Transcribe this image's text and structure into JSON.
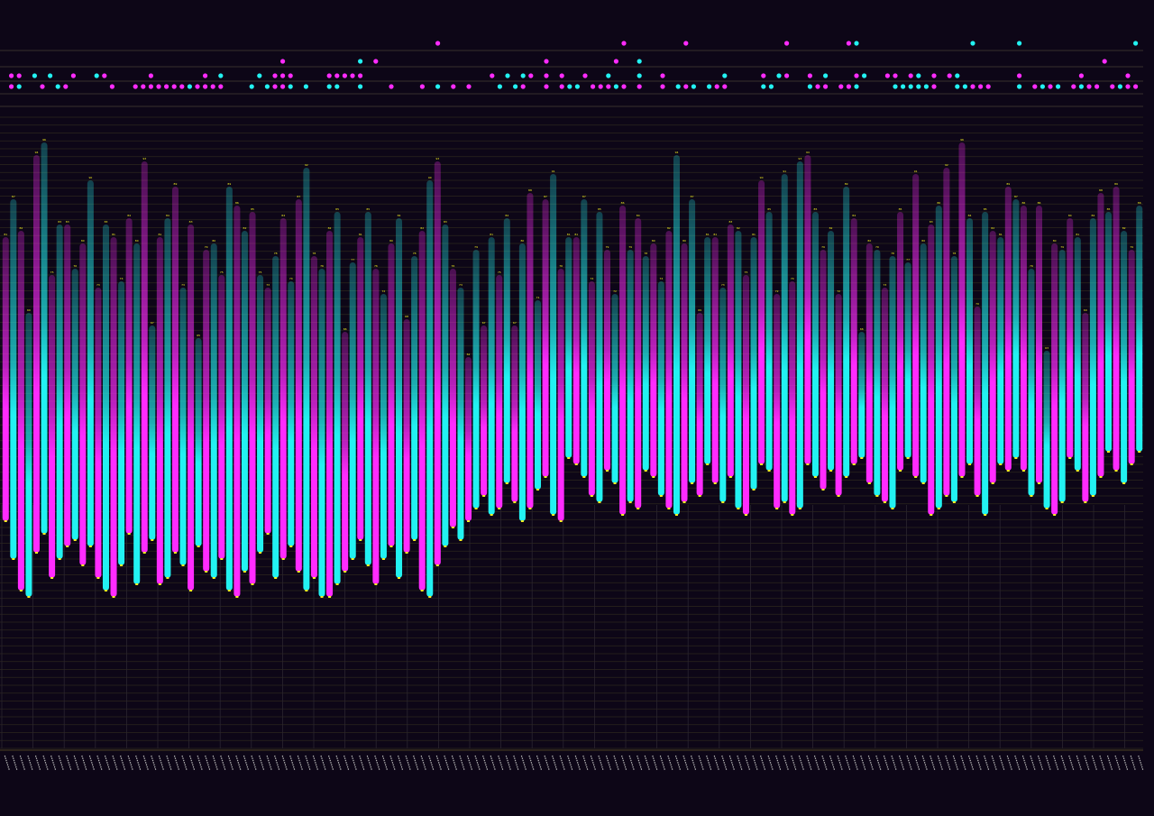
{
  "colors": {
    "background": "#0d0617",
    "series_a": "#ff2bff",
    "series_b": "#22f2f2",
    "label": "#f4f020",
    "grid": "#3a3420"
  },
  "chart_data": {
    "type": "bar",
    "subtype": "floating-range",
    "title": "",
    "xlabel": "",
    "ylabel": "",
    "ylim": [
      0,
      100
    ],
    "grid": true,
    "legend": "none",
    "bar_colors_alternate": [
      "magenta",
      "cyan"
    ],
    "ranges": [
      [
        36,
        81
      ],
      [
        30,
        87
      ],
      [
        25,
        82
      ],
      [
        24,
        69
      ],
      [
        31,
        94
      ],
      [
        34,
        96
      ],
      [
        27,
        75
      ],
      [
        30,
        83
      ],
      [
        32,
        83
      ],
      [
        33,
        76
      ],
      [
        29,
        80
      ],
      [
        32,
        90
      ],
      [
        27,
        73
      ],
      [
        25,
        83
      ],
      [
        24,
        81
      ],
      [
        29,
        74
      ],
      [
        34,
        84
      ],
      [
        26,
        80
      ],
      [
        31,
        93
      ],
      [
        33,
        67
      ],
      [
        26,
        81
      ],
      [
        27,
        84
      ],
      [
        31,
        89
      ],
      [
        29,
        73
      ],
      [
        25,
        83
      ],
      [
        32,
        65
      ],
      [
        28,
        79
      ],
      [
        27,
        80
      ],
      [
        30,
        75
      ],
      [
        25,
        89
      ],
      [
        24,
        86
      ],
      [
        28,
        82
      ],
      [
        26,
        85
      ],
      [
        31,
        75
      ],
      [
        34,
        73
      ],
      [
        27,
        78
      ],
      [
        30,
        84
      ],
      [
        32,
        74
      ],
      [
        28,
        87
      ],
      [
        25,
        92
      ],
      [
        27,
        78
      ],
      [
        24,
        76
      ],
      [
        24,
        82
      ],
      [
        26,
        85
      ],
      [
        28,
        66
      ],
      [
        30,
        77
      ],
      [
        33,
        81
      ],
      [
        29,
        85
      ],
      [
        26,
        76
      ],
      [
        30,
        72
      ],
      [
        32,
        80
      ],
      [
        27,
        84
      ],
      [
        31,
        68
      ],
      [
        33,
        78
      ],
      [
        25,
        82
      ],
      [
        24,
        90
      ],
      [
        29,
        93
      ],
      [
        32,
        83
      ],
      [
        35,
        76
      ],
      [
        33,
        73
      ],
      [
        36,
        62
      ],
      [
        38,
        79
      ],
      [
        40,
        67
      ],
      [
        37,
        81
      ],
      [
        38,
        75
      ],
      [
        42,
        84
      ],
      [
        39,
        67
      ],
      [
        36,
        80
      ],
      [
        38,
        88
      ],
      [
        41,
        71
      ],
      [
        43,
        87
      ],
      [
        37,
        91
      ],
      [
        36,
        76
      ],
      [
        46,
        81
      ],
      [
        45,
        81
      ],
      [
        43,
        87
      ],
      [
        40,
        74
      ],
      [
        39,
        85
      ],
      [
        44,
        79
      ],
      [
        42,
        72
      ],
      [
        37,
        86
      ],
      [
        39,
        79
      ],
      [
        38,
        84
      ],
      [
        44,
        78
      ],
      [
        43,
        80
      ],
      [
        40,
        74
      ],
      [
        38,
        82
      ],
      [
        37,
        94
      ],
      [
        39,
        80
      ],
      [
        42,
        87
      ],
      [
        40,
        69
      ],
      [
        45,
        81
      ],
      [
        42,
        81
      ],
      [
        39,
        73
      ],
      [
        43,
        83
      ],
      [
        38,
        82
      ],
      [
        37,
        75
      ],
      [
        41,
        81
      ],
      [
        45,
        90
      ],
      [
        44,
        85
      ],
      [
        38,
        72
      ],
      [
        39,
        91
      ],
      [
        37,
        74
      ],
      [
        38,
        93
      ],
      [
        45,
        94
      ],
      [
        43,
        85
      ],
      [
        41,
        79
      ],
      [
        44,
        82
      ],
      [
        40,
        72
      ],
      [
        43,
        89
      ],
      [
        45,
        84
      ],
      [
        46,
        66
      ],
      [
        42,
        80
      ],
      [
        40,
        79
      ],
      [
        39,
        73
      ],
      [
        38,
        78
      ],
      [
        44,
        85
      ],
      [
        46,
        77
      ],
      [
        43,
        91
      ],
      [
        42,
        80
      ],
      [
        37,
        83
      ],
      [
        38,
        86
      ],
      [
        40,
        92
      ],
      [
        39,
        78
      ],
      [
        43,
        96
      ],
      [
        45,
        84
      ],
      [
        40,
        70
      ],
      [
        37,
        85
      ],
      [
        42,
        82
      ],
      [
        45,
        81
      ],
      [
        44,
        89
      ],
      [
        46,
        87
      ],
      [
        44,
        86
      ],
      [
        40,
        76
      ],
      [
        42,
        86
      ],
      [
        38,
        63
      ],
      [
        37,
        80
      ],
      [
        39,
        79
      ],
      [
        46,
        84
      ],
      [
        44,
        81
      ],
      [
        39,
        69
      ],
      [
        40,
        84
      ],
      [
        43,
        88
      ],
      [
        47,
        85
      ],
      [
        44,
        89
      ],
      [
        42,
        82
      ],
      [
        45,
        79
      ],
      [
        47,
        86
      ]
    ]
  }
}
